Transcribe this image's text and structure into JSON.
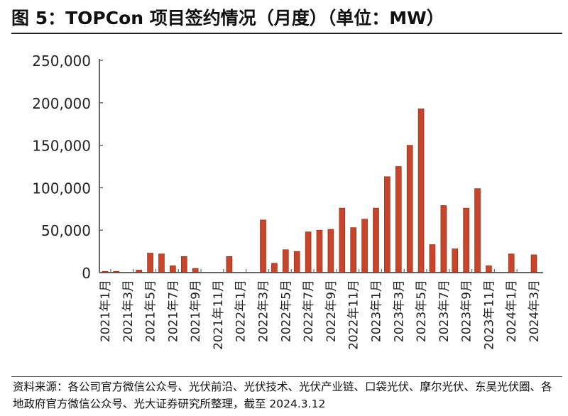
{
  "title": "图 5：TOPCon 项目签约情况（月度）（单位：MW）",
  "source": "资料来源：各公司官方微信公众号、光伏前沿、光伏技术、光伏产业链、口袋光伏、摩尔光伏、东吴光伏圈、各地政府官方微信公众号、光大证券研究所整理，截至 2024.3.12",
  "chart_data": {
    "type": "bar",
    "title": "图 5：TOPCon 项目签约情况（月度）（单位：MW）",
    "xlabel": "",
    "ylabel": "",
    "ylim": [
      0,
      250000
    ],
    "yticks": [
      "0",
      "50,000",
      "100,000",
      "150,000",
      "200,000",
      "250,000"
    ],
    "ytick_values": [
      0,
      50000,
      100000,
      150000,
      200000,
      250000
    ],
    "grid": false,
    "color": "#C8452A",
    "categories": [
      "2021年1月",
      "2021年2月",
      "2021年3月",
      "2021年4月",
      "2021年5月",
      "2021年6月",
      "2021年7月",
      "2021年8月",
      "2021年9月",
      "2021年10月",
      "2021年11月",
      "2021年12月",
      "2022年1月",
      "2022年2月",
      "2022年3月",
      "2022年4月",
      "2022年5月",
      "2022年6月",
      "2022年7月",
      "2022年8月",
      "2022年9月",
      "2022年10月",
      "2022年11月",
      "2022年12月",
      "2023年1月",
      "2023年2月",
      "2023年3月",
      "2023年4月",
      "2023年5月",
      "2023年6月",
      "2023年7月",
      "2023年8月",
      "2023年9月",
      "2023年10月",
      "2023年11月",
      "2023年12月",
      "2024年1月",
      "2024年2月",
      "2024年3月"
    ],
    "tick_labels": [
      "2021年1月",
      "2021年3月",
      "2021年5月",
      "2021年7月",
      "2021年9月",
      "2021年11月",
      "2022年1月",
      "2022年3月",
      "2022年5月",
      "2022年7月",
      "2022年9月",
      "2022年11月",
      "2023年1月",
      "2023年3月",
      "2023年5月",
      "2023年7月",
      "2023年9月",
      "2023年11月",
      "2024年1月",
      "2024年3月"
    ],
    "values": [
      1500,
      1500,
      0,
      3000,
      23000,
      22000,
      8000,
      19000,
      5000,
      0,
      0,
      19000,
      0,
      0,
      62000,
      11000,
      27000,
      25000,
      48000,
      50000,
      51000,
      76000,
      53000,
      63000,
      76000,
      113000,
      125000,
      150000,
      193000,
      33000,
      79000,
      28000,
      76000,
      99000,
      8000,
      0,
      22000,
      0,
      21000
    ]
  }
}
